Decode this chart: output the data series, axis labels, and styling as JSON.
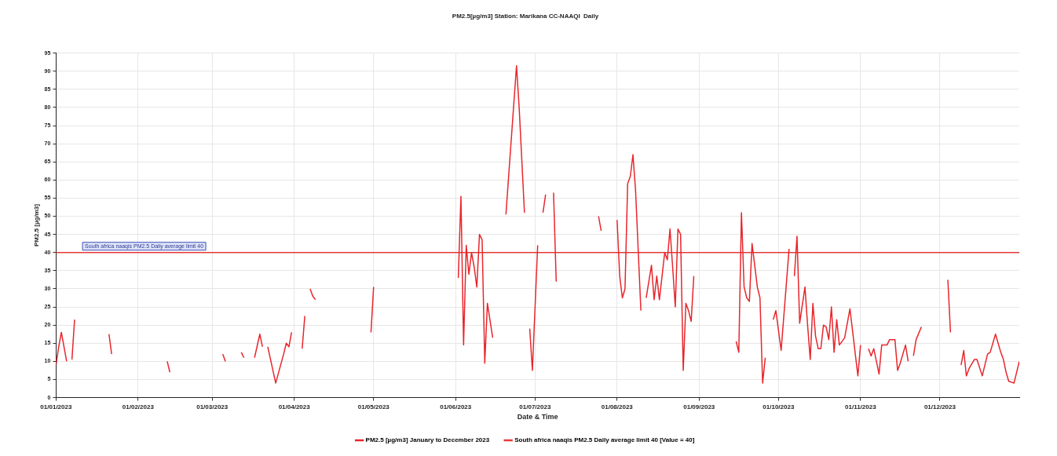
{
  "chart_data": {
    "type": "line",
    "title": "PM2.5[µg/m3] Station: Marikana CC-NAAQI  Daily",
    "xlabel": "Date & Time",
    "ylabel": "PM2.5 [µg/m3]",
    "xlim": [
      "2023-01-01",
      "2023-12-31"
    ],
    "xticks": [
      {
        "value": "2023-01-01",
        "label": "01/01/2023"
      },
      {
        "value": "2023-02-01",
        "label": "01/02/2023"
      },
      {
        "value": "2023-03-01",
        "label": "01/03/2023"
      },
      {
        "value": "2023-04-01",
        "label": "01/04/2023"
      },
      {
        "value": "2023-05-01",
        "label": "01/05/2023"
      },
      {
        "value": "2023-06-01",
        "label": "01/06/2023"
      },
      {
        "value": "2023-07-01",
        "label": "01/07/2023"
      },
      {
        "value": "2023-08-01",
        "label": "01/08/2023"
      },
      {
        "value": "2023-09-01",
        "label": "01/09/2023"
      },
      {
        "value": "2023-10-01",
        "label": "01/10/2023"
      },
      {
        "value": "2023-11-01",
        "label": "01/11/2023"
      },
      {
        "value": "2023-12-01",
        "label": "01/12/2023"
      }
    ],
    "ylim": [
      0,
      95
    ],
    "yticks": [
      0,
      5,
      10,
      15,
      20,
      25,
      30,
      35,
      40,
      45,
      50,
      55,
      60,
      65,
      70,
      75,
      80,
      85,
      90,
      95
    ],
    "grid": true,
    "legend": "bottom",
    "marker": "none",
    "line_style": "solid",
    "annotations": [
      {
        "text": "South africa naaqis PM2.5 Daily average limit 40",
        "x": "2023-01-11",
        "y": 40
      }
    ],
    "series": [
      {
        "name": "PM2.5 [µg/m3] January to December 2023",
        "color": "#e8262c",
        "x": [
          "2023-01-01",
          "2023-01-02",
          "2023-01-03",
          "2023-01-05",
          "2023-01-06",
          "2023-01-07",
          "2023-01-08",
          "2023-01-15",
          "2023-01-21",
          "2023-01-22",
          "2023-02-01",
          "2023-02-12",
          "2023-02-13",
          "2023-02-20",
          "2023-03-05",
          "2023-03-06",
          "2023-03-09",
          "2023-03-12",
          "2023-03-13",
          "2023-03-15",
          "2023-03-17",
          "2023-03-19",
          "2023-03-20",
          "2023-03-21",
          "2023-03-22",
          "2023-03-25",
          "2023-03-28",
          "2023-03-29",
          "2023-03-30",
          "2023-03-31",
          "2023-04-02",
          "2023-04-04",
          "2023-04-05",
          "2023-04-06",
          "2023-04-07",
          "2023-04-08",
          "2023-04-09",
          "2023-04-15",
          "2023-04-30",
          "2023-05-01",
          "2023-05-15",
          "2023-06-02",
          "2023-06-03",
          "2023-06-04",
          "2023-06-05",
          "2023-06-06",
          "2023-06-07",
          "2023-06-08",
          "2023-06-09",
          "2023-06-10",
          "2023-06-11",
          "2023-06-12",
          "2023-06-13",
          "2023-06-15",
          "2023-06-17",
          "2023-06-20",
          "2023-06-24",
          "2023-06-25",
          "2023-06-27",
          "2023-06-28",
          "2023-06-29",
          "2023-06-30",
          "2023-07-02",
          "2023-07-03",
          "2023-07-04",
          "2023-07-05",
          "2023-07-06",
          "2023-07-08",
          "2023-07-09",
          "2023-07-15",
          "2023-07-25",
          "2023-07-26",
          "2023-07-28",
          "2023-08-01",
          "2023-08-02",
          "2023-08-03",
          "2023-08-04",
          "2023-08-05",
          "2023-08-06",
          "2023-08-07",
          "2023-08-08",
          "2023-08-10",
          "2023-08-11",
          "2023-08-12",
          "2023-08-14",
          "2023-08-15",
          "2023-08-16",
          "2023-08-17",
          "2023-08-19",
          "2023-08-20",
          "2023-08-21",
          "2023-08-22",
          "2023-08-23",
          "2023-08-24",
          "2023-08-25",
          "2023-08-26",
          "2023-08-27",
          "2023-08-28",
          "2023-08-29",
          "2023-08-30",
          "2023-09-05",
          "2023-09-15",
          "2023-09-16",
          "2023-09-17",
          "2023-09-18",
          "2023-09-19",
          "2023-09-20",
          "2023-09-21",
          "2023-09-22",
          "2023-09-23",
          "2023-09-24",
          "2023-09-25",
          "2023-09-26",
          "2023-09-27",
          "2023-09-29",
          "2023-09-30",
          "2023-10-02",
          "2023-10-05",
          "2023-10-06",
          "2023-10-07",
          "2023-10-08",
          "2023-10-09",
          "2023-10-11",
          "2023-10-12",
          "2023-10-13",
          "2023-10-14",
          "2023-10-15",
          "2023-10-16",
          "2023-10-17",
          "2023-10-18",
          "2023-10-19",
          "2023-10-20",
          "2023-10-21",
          "2023-10-22",
          "2023-10-23",
          "2023-10-24",
          "2023-10-26",
          "2023-10-28",
          "2023-10-31",
          "2023-11-01",
          "2023-11-02",
          "2023-11-04",
          "2023-11-05",
          "2023-11-06",
          "2023-11-08",
          "2023-11-09",
          "2023-11-11",
          "2023-11-12",
          "2023-11-14",
          "2023-11-15",
          "2023-11-16",
          "2023-11-18",
          "2023-11-19",
          "2023-11-20",
          "2023-11-21",
          "2023-11-22",
          "2023-11-24",
          "2023-11-28",
          "2023-12-04",
          "2023-12-05",
          "2023-12-07",
          "2023-12-09",
          "2023-12-10",
          "2023-12-11",
          "2023-12-12",
          "2023-12-14",
          "2023-12-15",
          "2023-12-17",
          "2023-12-19",
          "2023-12-20",
          "2023-12-22",
          "2023-12-24",
          "2023-12-25",
          "2023-12-26",
          "2023-12-27",
          "2023-12-29",
          "2023-12-31"
        ],
        "values": [
          9,
          14,
          18,
          10,
          null,
          10.5,
          21.5,
          null,
          17.5,
          12,
          null,
          10,
          7,
          null,
          12,
          10,
          null,
          12.5,
          11,
          null,
          11,
          17.5,
          14,
          null,
          14,
          4,
          12,
          15,
          14,
          18,
          null,
          13.5,
          22.5,
          null,
          30,
          28,
          27,
          null,
          18,
          30.5,
          null,
          33,
          55.5,
          14.5,
          42,
          34,
          40,
          36,
          30.5,
          45,
          43.5,
          9.5,
          26,
          16.5,
          null,
          50.5,
          91.5,
          80,
          51,
          null,
          19,
          7.5,
          42,
          null,
          51,
          56,
          null,
          56.5,
          32,
          null,
          50,
          46,
          null,
          49,
          33.5,
          27.5,
          30,
          59,
          61,
          67,
          57,
          24,
          null,
          27.5,
          36.5,
          27,
          33.5,
          27,
          40,
          38,
          46.5,
          36,
          25,
          46.5,
          45,
          7.5,
          26,
          24,
          21,
          33.5,
          null,
          15.5,
          12.5,
          51,
          30.5,
          27.5,
          26.5,
          42.5,
          36.5,
          30.5,
          27.5,
          4,
          11,
          null,
          21.5,
          24,
          13,
          41,
          null,
          33.5,
          44.5,
          20.5,
          30.5,
          20,
          10.5,
          26,
          17,
          13.5,
          13.5,
          20,
          19.5,
          16,
          25,
          12.5,
          21.5,
          14.5,
          16.5,
          24.5,
          6,
          14.5,
          null,
          13.5,
          11.5,
          13.5,
          6.5,
          14.5,
          14.5,
          16,
          16,
          7.5,
          9.5,
          14.5,
          10,
          null,
          11.5,
          16,
          19.5,
          null,
          32.5,
          18,
          null,
          9,
          13,
          6,
          8,
          10.5,
          10.5,
          6,
          12,
          12.5,
          17.5,
          12.5,
          10.5,
          7,
          4.5,
          4,
          10
        ]
      },
      {
        "name": "South africa naaqis PM2.5 Daily average limit 40 [Value = 40]",
        "color": "#e53935",
        "x": [
          "2023-01-01",
          "2023-12-31"
        ],
        "values": [
          40,
          40
        ]
      }
    ]
  }
}
